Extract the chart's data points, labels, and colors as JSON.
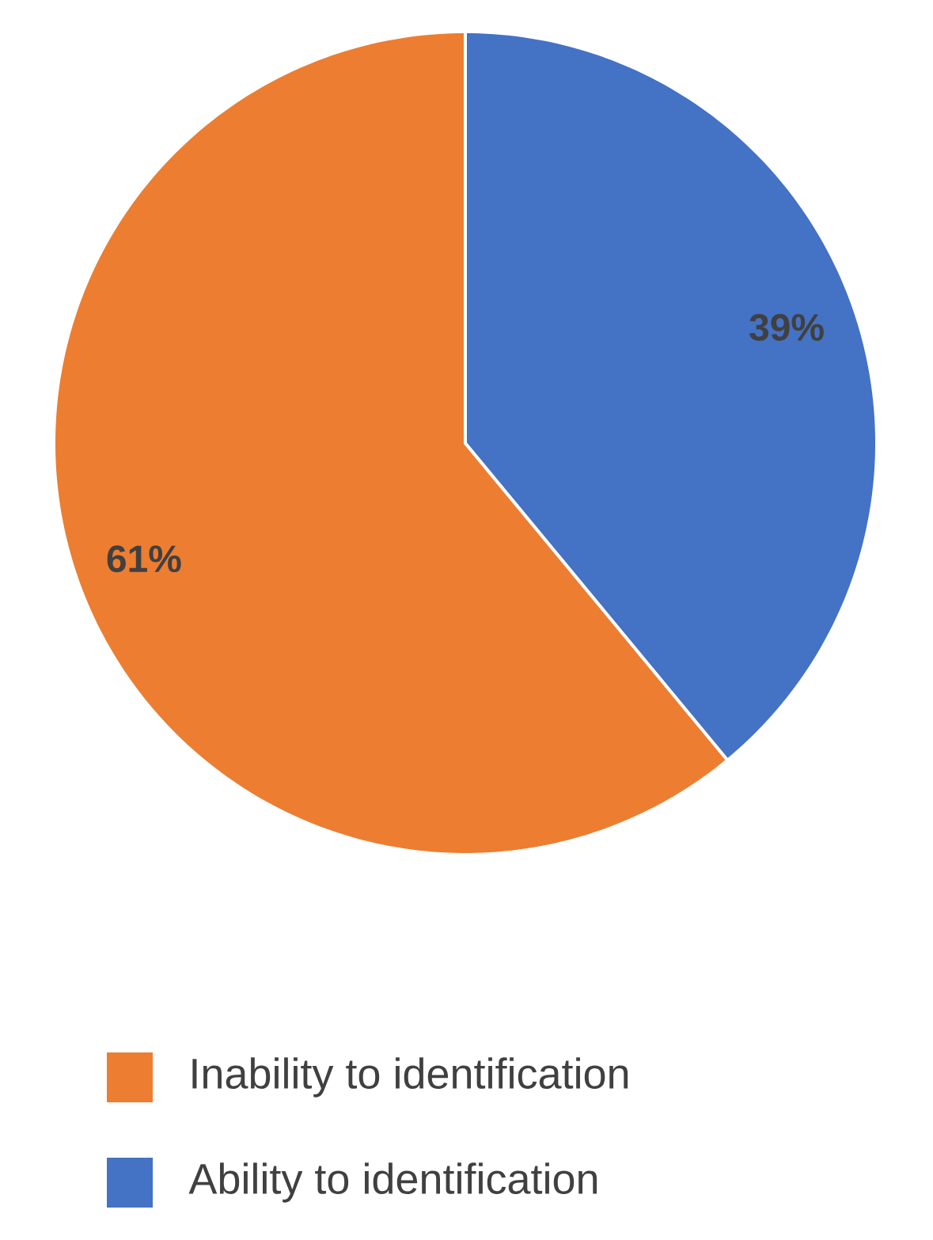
{
  "chart_data": {
    "type": "pie",
    "categories": [
      "Inability to identification",
      "Ability to identification"
    ],
    "values": [
      61,
      39
    ],
    "colors": [
      "#ed7d31",
      "#4472c4"
    ],
    "value_labels": [
      "61%",
      "39%"
    ],
    "legend": "bottom"
  }
}
